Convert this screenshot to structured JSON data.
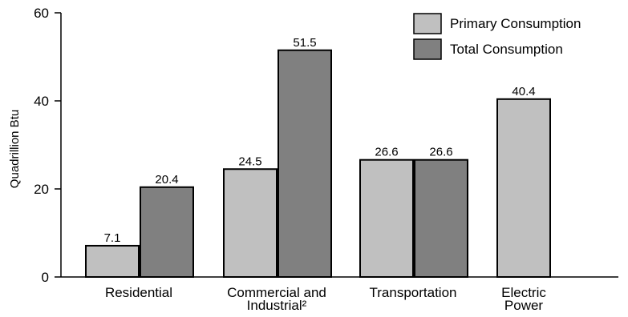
{
  "chart_data": {
    "type": "bar",
    "title": "",
    "xlabel": "",
    "ylabel": "Quadrillion Btu",
    "ylim": [
      0,
      60
    ],
    "yticks": [
      0,
      20,
      40,
      60
    ],
    "grid": false,
    "legend_position": "top-right",
    "categories": [
      [
        "Residential"
      ],
      [
        "Commercial and",
        "Industrial²"
      ],
      [
        "Transportation"
      ],
      [
        "Electric",
        "Power"
      ]
    ],
    "series": [
      {
        "name": "Primary Consumption",
        "color": "#c0c0c0",
        "values": [
          7.1,
          24.5,
          26.6,
          40.4
        ]
      },
      {
        "name": "Total Consumption",
        "color": "#808080",
        "values": [
          20.4,
          51.5,
          26.6,
          null
        ]
      }
    ]
  }
}
